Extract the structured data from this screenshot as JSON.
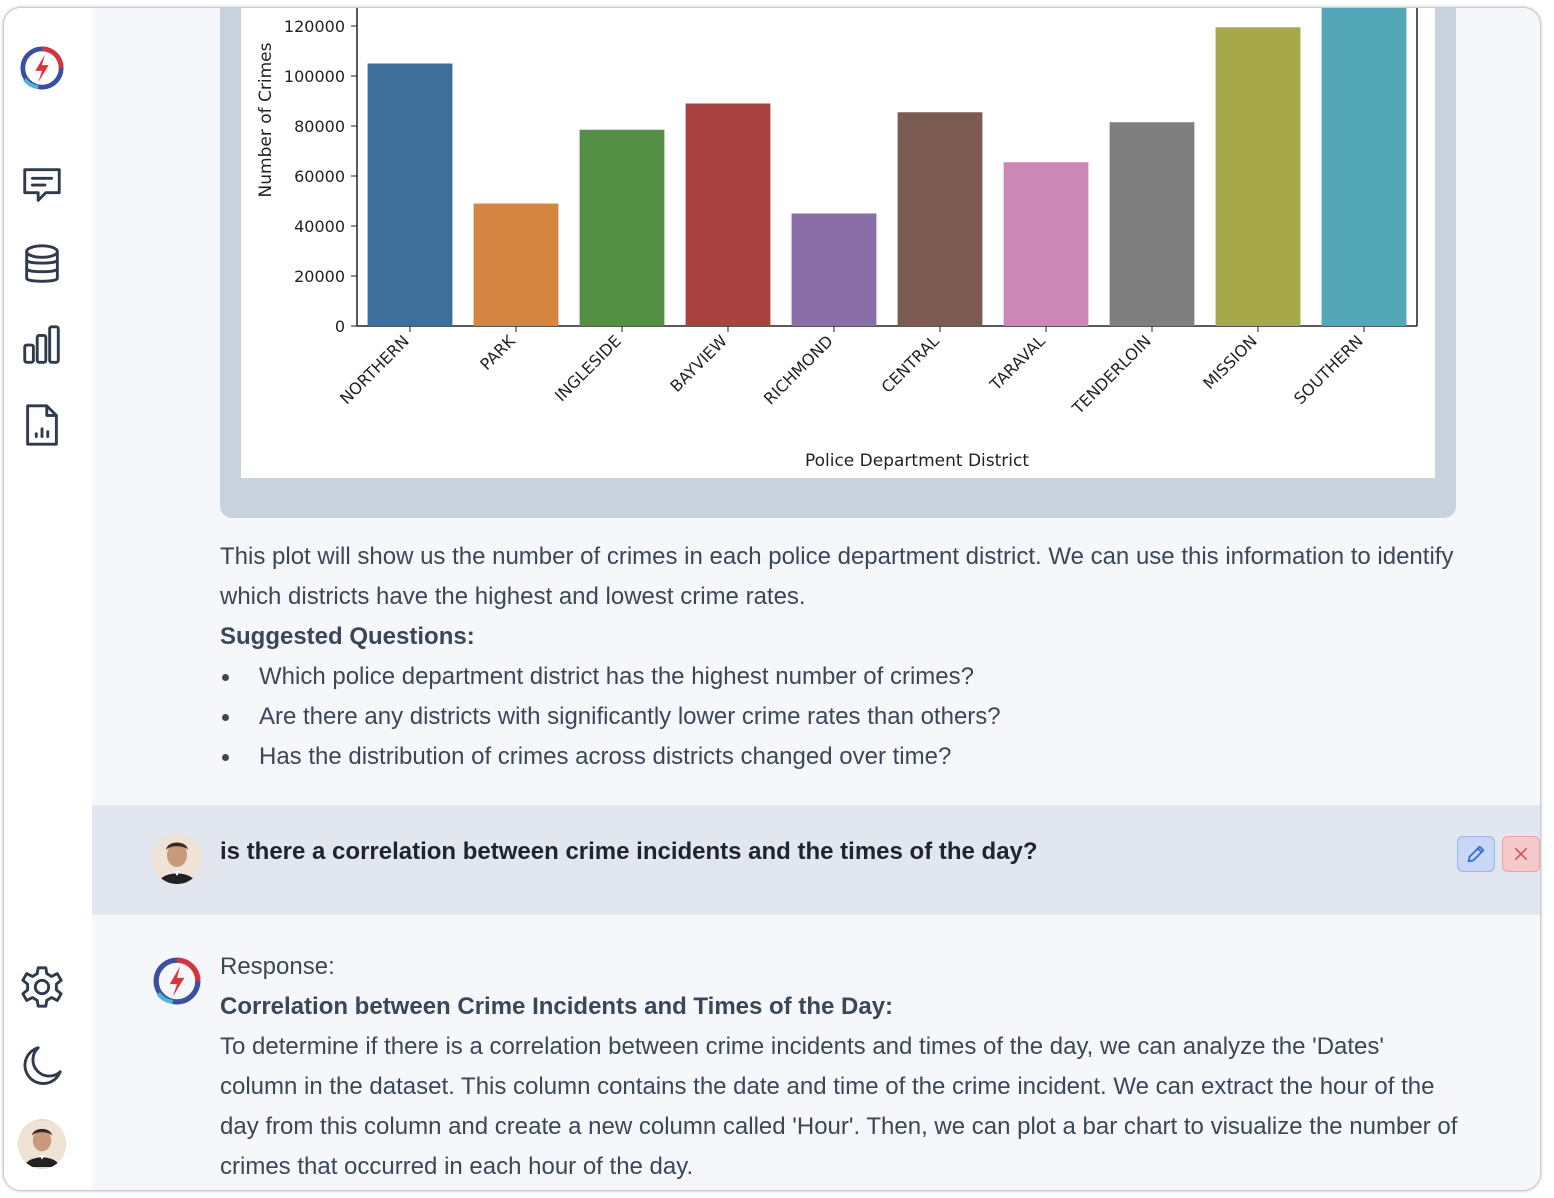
{
  "sidebar": {
    "items": [
      {
        "name": "logo",
        "icon": "app-logo-icon"
      },
      {
        "name": "chat",
        "icon": "chat-icon"
      },
      {
        "name": "database",
        "icon": "database-icon"
      },
      {
        "name": "charts",
        "icon": "bar-chart-icon"
      },
      {
        "name": "reports",
        "icon": "report-file-icon"
      },
      {
        "name": "settings",
        "icon": "gear-icon"
      },
      {
        "name": "theme",
        "icon": "moon-icon"
      },
      {
        "name": "profile",
        "icon": "user-avatar"
      }
    ]
  },
  "chart_data": {
    "type": "bar",
    "categories": [
      "NORTHERN",
      "PARK",
      "INGLESIDE",
      "BAYVIEW",
      "RICHMOND",
      "CENTRAL",
      "TARAVAL",
      "TENDERLOIN",
      "MISSION",
      "SOUTHERN"
    ],
    "values": [
      105000,
      49000,
      78500,
      89000,
      45000,
      85500,
      65500,
      81500,
      119500,
      132000
    ],
    "colors": [
      "#3e6f9b",
      "#d38541",
      "#548f45",
      "#a94341",
      "#8a6ea7",
      "#7c5c52",
      "#cb87b6",
      "#7f7f7f",
      "#a6a84a",
      "#52a6b5"
    ],
    "xlabel": "Police Department District",
    "ylabel": "Number of Crimes",
    "yticks": [
      "0",
      "20000",
      "40000",
      "60000",
      "80000",
      "100000",
      "120000"
    ],
    "ylim": [
      0,
      132000
    ],
    "grid": false
  },
  "answer1": {
    "paragraph": "This plot will show us the number of crimes in each police department district. We can use this information to identify which districts have the highest and lowest crime rates.",
    "suggested_heading": "Suggested Questions:",
    "questions": [
      "Which police department district has the highest number of crimes?",
      "Are there any districts with significantly lower crime rates than others?",
      "Has the distribution of crimes across districts changed over time?"
    ]
  },
  "user_message": {
    "text": "is there a correlation between crime incidents and the times of the day?",
    "edit_icon": "pencil-icon",
    "delete_icon": "close-icon"
  },
  "answer2": {
    "label": "Response:",
    "heading": "Correlation between Crime Incidents and Times of the Day:",
    "paragraph": "To determine if there is a correlation between crime incidents and times of the day, we can analyze the 'Dates' column in the dataset. This column contains the date and time of the crime incident. We can extract the hour of the day from this column and create a new column called 'Hour'. Then, we can plot a bar chart to visualize the number of crimes that occurred in each hour of the day."
  }
}
